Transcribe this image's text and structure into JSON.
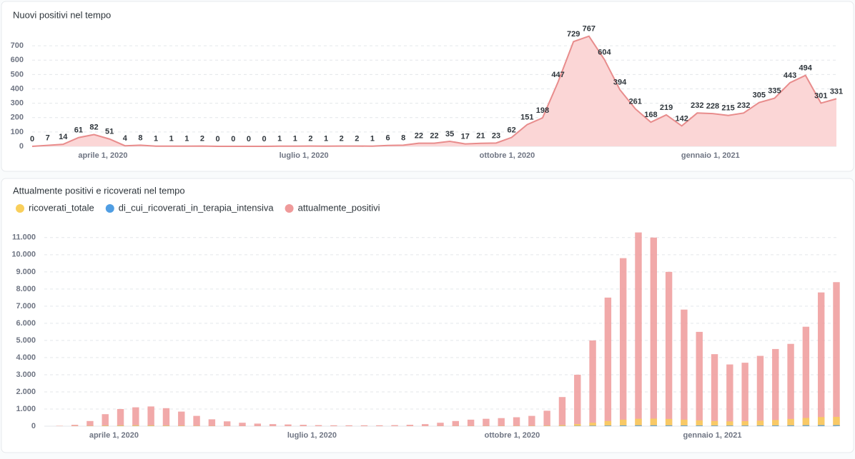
{
  "chart_data": [
    {
      "type": "area",
      "title": "Nuovi positivi nel tempo",
      "color": "#e88c8c",
      "fill": "#fbd6d6",
      "x": [
        "2020-02-29",
        "2020-03-07",
        "2020-03-14",
        "2020-03-21",
        "2020-03-28",
        "2020-04-04",
        "2020-04-11",
        "2020-04-18",
        "2020-04-25",
        "2020-05-02",
        "2020-05-09",
        "2020-05-16",
        "2020-05-23",
        "2020-05-30",
        "2020-06-06",
        "2020-06-13",
        "2020-06-20",
        "2020-06-27",
        "2020-07-04",
        "2020-07-11",
        "2020-07-18",
        "2020-07-25",
        "2020-08-01",
        "2020-08-08",
        "2020-08-15",
        "2020-08-22",
        "2020-08-29",
        "2020-09-05",
        "2020-09-12",
        "2020-09-19",
        "2020-09-26",
        "2020-10-03",
        "2020-10-10",
        "2020-10-17",
        "2020-10-24",
        "2020-10-31",
        "2020-11-07",
        "2020-11-14",
        "2020-11-21",
        "2020-11-28",
        "2020-12-05",
        "2020-12-12",
        "2020-12-19",
        "2020-12-26",
        "2021-01-02",
        "2021-01-09",
        "2021-01-16",
        "2021-01-23",
        "2021-01-30",
        "2021-02-06",
        "2021-02-13",
        "2021-02-20",
        "2021-02-27"
      ],
      "values": [
        0,
        7,
        14,
        61,
        82,
        51,
        4,
        8,
        1,
        1,
        1,
        2,
        0,
        0,
        0,
        0,
        1,
        1,
        2,
        1,
        2,
        2,
        1,
        6,
        8,
        22,
        22,
        35,
        17,
        21,
        23,
        62,
        151,
        198,
        447,
        729,
        767,
        604,
        394,
        261,
        168,
        219,
        142,
        232,
        228,
        215,
        232,
        305,
        335,
        443,
        494,
        301,
        331
      ],
      "xlim": [
        "2020-02-29",
        "2021-02-27"
      ],
      "xticks": [
        {
          "value": "2020-04-01",
          "label": "aprile 1, 2020"
        },
        {
          "value": "2020-07-01",
          "label": "luglio 1, 2020"
        },
        {
          "value": "2020-10-01",
          "label": "ottobre 1, 2020"
        },
        {
          "value": "2021-01-01",
          "label": "gennaio 1, 2021"
        }
      ],
      "ylim": [
        0,
        800
      ],
      "yticks": [
        0,
        100,
        200,
        300,
        400,
        500,
        600,
        700
      ],
      "grid": true
    },
    {
      "type": "bar",
      "title": "Attualmente positivi e ricoverati nel tempo",
      "legend": "top",
      "x": [
        "2020-02-29",
        "2020-03-07",
        "2020-03-14",
        "2020-03-21",
        "2020-03-28",
        "2020-04-04",
        "2020-04-11",
        "2020-04-18",
        "2020-04-25",
        "2020-05-02",
        "2020-05-09",
        "2020-05-16",
        "2020-05-23",
        "2020-05-30",
        "2020-06-06",
        "2020-06-13",
        "2020-06-20",
        "2020-06-27",
        "2020-07-04",
        "2020-07-11",
        "2020-07-18",
        "2020-07-25",
        "2020-08-01",
        "2020-08-08",
        "2020-08-15",
        "2020-08-22",
        "2020-08-29",
        "2020-09-05",
        "2020-09-12",
        "2020-09-19",
        "2020-09-26",
        "2020-10-03",
        "2020-10-10",
        "2020-10-17",
        "2020-10-24",
        "2020-10-31",
        "2020-11-07",
        "2020-11-14",
        "2020-11-21",
        "2020-11-28",
        "2020-12-05",
        "2020-12-12",
        "2020-12-19",
        "2020-12-26",
        "2021-01-02",
        "2021-01-09",
        "2021-01-16",
        "2021-01-23",
        "2021-01-30",
        "2021-02-06",
        "2021-02-13",
        "2021-02-20",
        "2021-02-27"
      ],
      "series": [
        {
          "name": "ricoverati_totale",
          "color": "#f9cf5b",
          "values": [
            0,
            2,
            8,
            20,
            40,
            50,
            55,
            50,
            40,
            30,
            20,
            12,
            8,
            5,
            3,
            2,
            2,
            2,
            2,
            2,
            2,
            2,
            2,
            2,
            3,
            4,
            6,
            8,
            10,
            12,
            14,
            16,
            20,
            30,
            60,
            120,
            200,
            300,
            380,
            430,
            440,
            420,
            380,
            340,
            300,
            280,
            290,
            320,
            360,
            420,
            480,
            530,
            540
          ]
        },
        {
          "name": "di_cui_ricoverati_in_terapia_intensiva",
          "color": "#509ee3",
          "values": [
            0,
            0,
            1,
            3,
            6,
            8,
            8,
            7,
            6,
            4,
            3,
            2,
            1,
            1,
            1,
            0,
            0,
            0,
            0,
            0,
            0,
            0,
            0,
            0,
            0,
            0,
            1,
            1,
            1,
            2,
            2,
            2,
            3,
            4,
            8,
            15,
            25,
            35,
            45,
            50,
            50,
            48,
            44,
            40,
            36,
            34,
            35,
            38,
            42,
            48,
            55,
            60,
            60
          ]
        },
        {
          "name": "attualmente_positivi",
          "color": "#ef9a9a",
          "values": [
            0,
            20,
            80,
            300,
            700,
            1000,
            1100,
            1150,
            1050,
            850,
            600,
            400,
            280,
            200,
            150,
            120,
            100,
            80,
            60,
            50,
            50,
            50,
            50,
            60,
            80,
            120,
            200,
            300,
            380,
            430,
            470,
            520,
            600,
            900,
            1700,
            3000,
            5000,
            7500,
            9800,
            11300,
            11000,
            9000,
            6800,
            5500,
            4200,
            3600,
            3700,
            4100,
            4500,
            4800,
            5800,
            7800,
            8400
          ]
        }
      ],
      "xlim": [
        "2020-02-29",
        "2021-02-27"
      ],
      "xticks": [
        {
          "value": "2020-04-01",
          "label": "aprile 1, 2020"
        },
        {
          "value": "2020-07-01",
          "label": "luglio 1, 2020"
        },
        {
          "value": "2020-10-01",
          "label": "ottobre 1, 2020"
        },
        {
          "value": "2021-01-01",
          "label": "gennaio 1, 2021"
        }
      ],
      "ylim": [
        0,
        11700
      ],
      "yticks": [
        0,
        {
          "value": 1000,
          "label": "1.000"
        },
        {
          "value": 2000,
          "label": "2.000"
        },
        {
          "value": 3000,
          "label": "3.000"
        },
        {
          "value": 4000,
          "label": "4.000"
        },
        {
          "value": 5000,
          "label": "5.000"
        },
        {
          "value": 6000,
          "label": "6.000"
        },
        {
          "value": 7000,
          "label": "7.000"
        },
        {
          "value": 8000,
          "label": "8.000"
        },
        {
          "value": 9000,
          "label": "9.000"
        },
        {
          "value": 10000,
          "label": "10.000"
        },
        {
          "value": 11000,
          "label": "11.000"
        }
      ],
      "grid": true
    }
  ]
}
